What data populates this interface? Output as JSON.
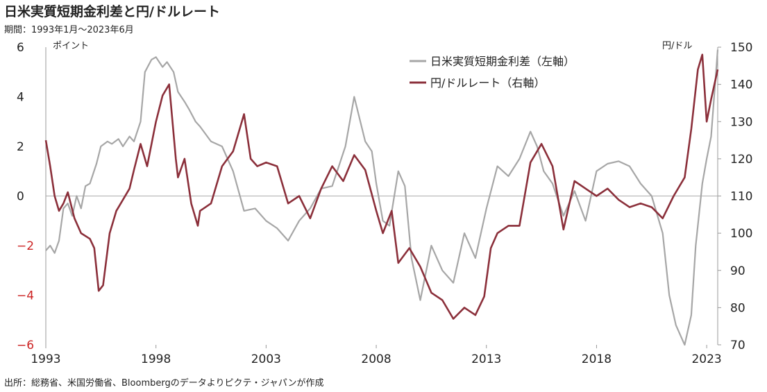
{
  "title": "日米実質短期金利差と円/ドルレート",
  "period": "期間：1993年1月～2023年6月",
  "source": "出所：総務省、米国労働省、Bloombergのデータよりピクテ・ジャパンが作成",
  "chart_data": {
    "type": "line",
    "left_axis": {
      "unit": "ポイント",
      "ylim": [
        -6,
        6
      ],
      "ticks": [
        "6",
        "4",
        "2",
        "0",
        "−2",
        "−4",
        "−6"
      ],
      "negative_color": "#cc2222"
    },
    "right_axis": {
      "unit": "円/ドル",
      "ylim": [
        70,
        150
      ],
      "ticks": [
        "150",
        "140",
        "130",
        "120",
        "110",
        "100",
        "90",
        "80",
        "70"
      ]
    },
    "x_axis": {
      "xlim": [
        1993.0,
        2023.5
      ],
      "ticks": [
        "1993",
        "1998",
        "2003",
        "2008",
        "2013",
        "2018",
        "2023"
      ]
    },
    "series": [
      {
        "name": "日米実質短期金利差（左軸）",
        "axis": "left",
        "color": "#a6a6a6",
        "x": [
          1993.0,
          1993.2,
          1993.4,
          1993.6,
          1993.8,
          1994.0,
          1994.2,
          1994.4,
          1994.6,
          1994.8,
          1995.0,
          1995.3,
          1995.5,
          1995.8,
          1996.0,
          1996.3,
          1996.5,
          1996.8,
          1997.0,
          1997.3,
          1997.5,
          1997.8,
          1998.0,
          1998.3,
          1998.5,
          1998.8,
          1999.0,
          1999.3,
          1999.5,
          1999.8,
          2000.0,
          2000.5,
          2001.0,
          2001.5,
          2002.0,
          2002.5,
          2003.0,
          2003.5,
          2004.0,
          2004.5,
          2005.0,
          2005.5,
          2006.0,
          2006.3,
          2006.6,
          2007.0,
          2007.5,
          2007.8,
          2008.0,
          2008.3,
          2008.6,
          2009.0,
          2009.3,
          2009.6,
          2010.0,
          2010.5,
          2011.0,
          2011.5,
          2012.0,
          2012.5,
          2013.0,
          2013.5,
          2014.0,
          2014.5,
          2015.0,
          2015.3,
          2015.6,
          2016.0,
          2016.5,
          2017.0,
          2017.5,
          2018.0,
          2018.5,
          2019.0,
          2019.5,
          2020.0,
          2020.5,
          2021.0,
          2021.3,
          2021.6,
          2021.9,
          2022.0,
          2022.3,
          2022.5,
          2022.8,
          2023.0,
          2023.2,
          2023.5
        ],
        "y": [
          -2.2,
          -2.0,
          -2.3,
          -1.8,
          -0.5,
          -0.3,
          -0.8,
          0.0,
          -0.5,
          0.4,
          0.5,
          1.3,
          2.0,
          2.2,
          2.1,
          2.3,
          2.0,
          2.4,
          2.2,
          3.0,
          5.0,
          5.5,
          5.6,
          5.2,
          5.4,
          5.0,
          4.2,
          3.8,
          3.5,
          3.0,
          2.8,
          2.2,
          2.0,
          1.0,
          -0.6,
          -0.5,
          -1.0,
          -1.3,
          -1.8,
          -1.0,
          -0.5,
          0.3,
          0.4,
          1.2,
          2.0,
          4.0,
          2.2,
          1.8,
          0.5,
          -1.0,
          -1.2,
          1.0,
          0.4,
          -2.5,
          -4.2,
          -2.0,
          -3.0,
          -3.5,
          -1.5,
          -2.5,
          -0.5,
          1.2,
          0.8,
          1.5,
          2.6,
          2.0,
          1.0,
          0.5,
          -0.8,
          0.2,
          -1.0,
          1.0,
          1.3,
          1.4,
          1.2,
          0.5,
          0.0,
          -1.5,
          -4.0,
          -5.2,
          -5.8,
          -6.0,
          -4.8,
          -2.0,
          0.5,
          1.5,
          2.4,
          5.9
        ]
      },
      {
        "name": "円/ドルレート（右軸）",
        "axis": "right",
        "color": "#8b2f3a",
        "x": [
          1993.0,
          1993.2,
          1993.4,
          1993.6,
          1993.8,
          1994.0,
          1994.3,
          1994.6,
          1995.0,
          1995.2,
          1995.4,
          1995.6,
          1995.9,
          1996.2,
          1996.5,
          1996.8,
          1997.0,
          1997.3,
          1997.6,
          1997.9,
          1998.0,
          1998.3,
          1998.6,
          1998.9,
          1999.0,
          1999.3,
          1999.6,
          1999.9,
          2000.0,
          2000.5,
          2001.0,
          2001.5,
          2002.0,
          2002.3,
          2002.6,
          2003.0,
          2003.5,
          2004.0,
          2004.5,
          2005.0,
          2005.5,
          2006.0,
          2006.5,
          2007.0,
          2007.5,
          2008.0,
          2008.3,
          2008.7,
          2009.0,
          2009.5,
          2010.0,
          2010.5,
          2011.0,
          2011.5,
          2012.0,
          2012.5,
          2012.9,
          2013.2,
          2013.5,
          2014.0,
          2014.5,
          2015.0,
          2015.5,
          2016.0,
          2016.5,
          2017.0,
          2017.5,
          2018.0,
          2018.5,
          2019.0,
          2019.5,
          2020.0,
          2020.5,
          2021.0,
          2021.5,
          2022.0,
          2022.3,
          2022.6,
          2022.8,
          2023.0,
          2023.2,
          2023.5
        ],
        "y": [
          125.0,
          118.0,
          110.0,
          106.0,
          108.0,
          111.0,
          104.0,
          100.0,
          98.5,
          96.0,
          84.5,
          86.0,
          100.0,
          106.0,
          109.0,
          112.0,
          117.0,
          124.0,
          118.0,
          127.0,
          130.0,
          137.0,
          140.0,
          120.0,
          115.0,
          120.0,
          108.0,
          102.0,
          106.0,
          108.0,
          118.0,
          122.0,
          132.0,
          120.0,
          118.0,
          119.0,
          118.0,
          108.0,
          110.0,
          104.0,
          112.0,
          118.0,
          114.0,
          121.0,
          117.0,
          106.0,
          100.0,
          106.0,
          92.0,
          96.0,
          91.0,
          84.0,
          82.0,
          77.0,
          80.0,
          78.0,
          83.0,
          96.0,
          100.0,
          102.0,
          102.0,
          119.0,
          124.0,
          118.0,
          101.0,
          114.0,
          112.0,
          110.0,
          112.0,
          109.0,
          107.0,
          108.0,
          107.0,
          104.0,
          110.0,
          115.0,
          128.0,
          144.0,
          148.0,
          130.0,
          136.0,
          144.0
        ]
      }
    ]
  }
}
